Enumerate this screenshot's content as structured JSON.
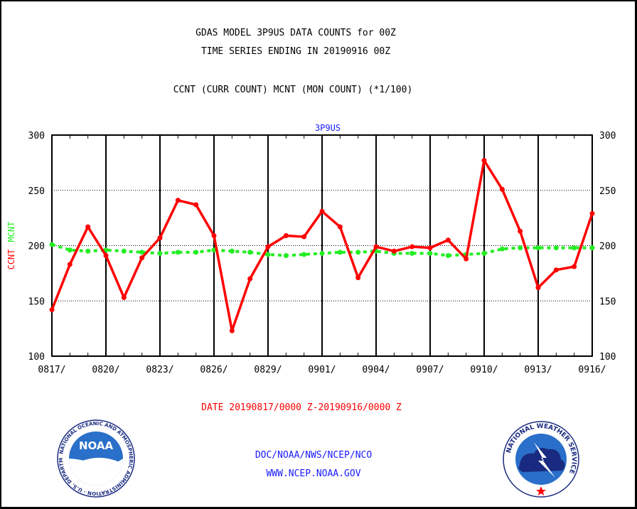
{
  "header": {
    "line1": "GDAS MODEL 3P9US DATA COUNTS for 00Z",
    "line2": "TIME SERIES ENDING IN 20190916 00Z",
    "line3": "CCNT (CURR COUNT) MCNT (MON COUNT) (*1/100)"
  },
  "footer": {
    "date_range": "DATE 20190817/0000 Z-20190916/0000 Z",
    "org_path": "DOC/NOAA/NWS/NCEP/NCO",
    "website": "WWW.NCEP.NOAA.GOV"
  },
  "logos": {
    "noaa_text": "NOAA",
    "noaa_ring_text": "NATIONAL OCEANIC AND ATMOSPHERIC ADMINISTRATION · U.S. DEPARTMENT OF COMMERCE ·",
    "nws_ring_text": "NATIONAL WEATHER SERVICE"
  },
  "colors": {
    "ccnt": "#ff0000",
    "mcnt": "#22ee22",
    "title_blue": "#1a1aff"
  },
  "chart_data": {
    "type": "line",
    "title": "3P9US",
    "ylabel_parts": [
      "CCNT",
      "MCNT"
    ],
    "ylim": [
      100,
      300
    ],
    "yticks": [
      100,
      150,
      200,
      250,
      300
    ],
    "grid": true,
    "x_tick_labels": [
      "0817/",
      "0820/",
      "0823/",
      "0826/",
      "0829/",
      "0901/",
      "0904/",
      "0907/",
      "0910/",
      "0913/",
      "0916/"
    ],
    "series": [
      {
        "name": "CCNT",
        "values": [
          142,
          183,
          217,
          191,
          153,
          189,
          207,
          241,
          237,
          209,
          123,
          170,
          199,
          209,
          208,
          231,
          217,
          171,
          199,
          195,
          199,
          198,
          205,
          188,
          277,
          251,
          213,
          162,
          178,
          181,
          229
        ]
      },
      {
        "name": "MCNT",
        "values": [
          201,
          196,
          195,
          196,
          195,
          194,
          193,
          194,
          194,
          196,
          195,
          194,
          192,
          191,
          192,
          193,
          194,
          194,
          195,
          193,
          193,
          193,
          191,
          192,
          193,
          197,
          198,
          198,
          198,
          198,
          198
        ]
      }
    ]
  }
}
